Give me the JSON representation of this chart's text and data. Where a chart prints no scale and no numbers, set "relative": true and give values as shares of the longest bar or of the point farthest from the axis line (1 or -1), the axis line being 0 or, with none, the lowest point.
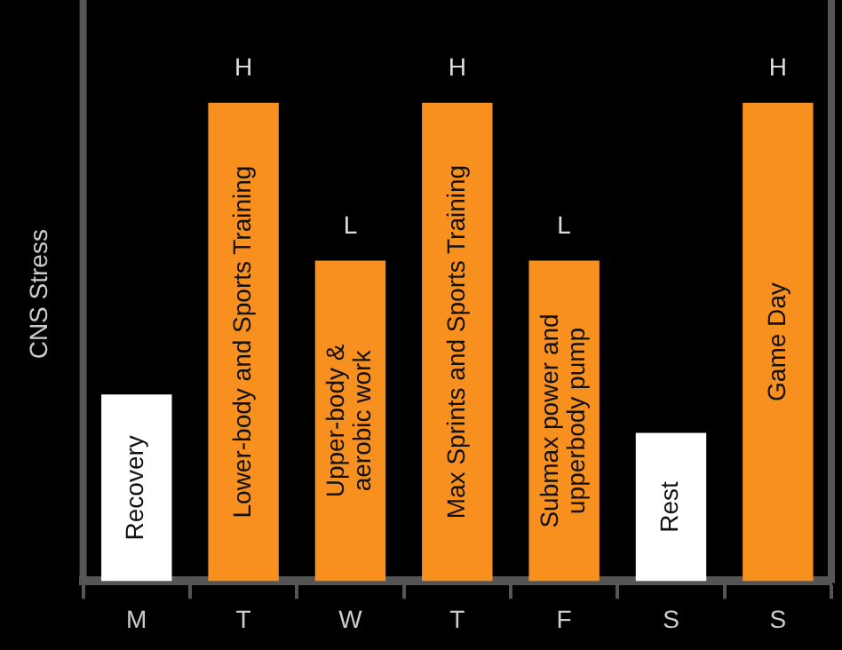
{
  "chart_data": {
    "type": "bar",
    "relative": true,
    "ylabel": "CNS Stress",
    "categories": [
      "M",
      "T",
      "W",
      "T",
      "F",
      "S",
      "S"
    ],
    "values": [
      0.39,
      1,
      0.67,
      1,
      0.67,
      0.31,
      1
    ],
    "colors": [
      "#ffffff",
      "#f7901e",
      "#f7901e",
      "#f7901e",
      "#f7901e",
      "#ffffff",
      "#f7901e"
    ],
    "annotations": [
      "Recovery",
      "Lower-body and Sports Training",
      "Upper-body &\naerobic work",
      "Max Sprints and Sports Training",
      "Submax power and\nupperbody pump",
      "Rest",
      "Game Day",
      {
        "text": "H",
        "x": "T",
        "y": 1
      },
      {
        "text": "L",
        "x": "W",
        "y": 0.67
      },
      {
        "text": "L",
        "x": "F",
        "y": 0.67
      },
      "H",
      "H"
    ],
    "grid": false,
    "legend": false
  }
}
